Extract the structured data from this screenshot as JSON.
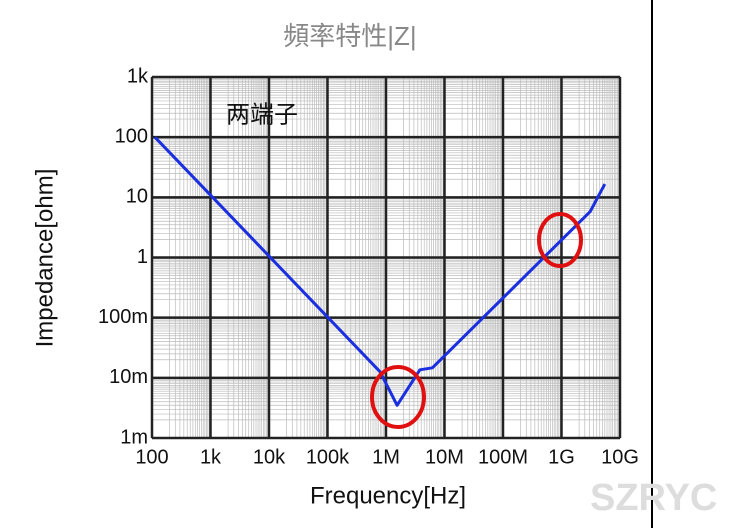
{
  "chart_data": {
    "type": "line",
    "title": "頻率特性|Z|",
    "annotation": "两端子",
    "watermark": "SZRYC",
    "x_label": "Frequency[Hz]",
    "y_label": "Impedance[ohm]",
    "x": [
      112,
      794000,
      1550000,
      3800000,
      6200000,
      3100000000,
      5500000000
    ],
    "values": [
      100,
      0.0126,
      0.0035,
      0.0136,
      0.0147,
      5.8,
      16.6
    ],
    "color": "#1a2fe0",
    "log_x": true,
    "log_y": true,
    "grid": true,
    "xlim": [
      100,
      10000000000
    ],
    "ylim": [
      0.001,
      1000
    ],
    "xticks": [
      100,
      {
        "value": 1000,
        "label": "1k"
      },
      {
        "value": 10000,
        "label": "10k"
      },
      {
        "value": 100000,
        "label": "100k"
      },
      {
        "value": 1000000,
        "label": "1M"
      },
      {
        "value": 10000000,
        "label": "10M"
      },
      {
        "value": 100000000,
        "label": "100M"
      },
      {
        "value": 1000000000,
        "label": "1G"
      },
      {
        "value": 10000000000,
        "label": "10G"
      }
    ],
    "yticks": [
      {
        "value": 0.001,
        "label": "1m"
      },
      {
        "value": 0.01,
        "label": "10m"
      },
      {
        "value": 0.1,
        "label": "100m"
      },
      1,
      10,
      100,
      {
        "value": 1000,
        "label": "1k"
      }
    ]
  }
}
